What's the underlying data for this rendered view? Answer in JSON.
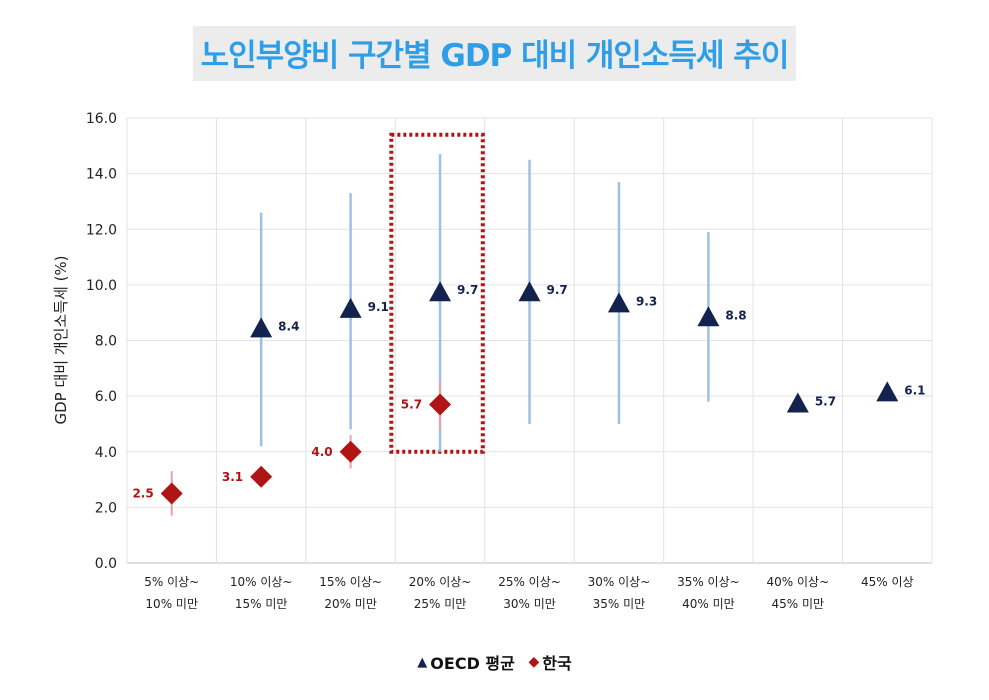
{
  "chart_data": {
    "type": "scatter",
    "title": "노인부양비 구간별 GDP 대비 개인소득세 추이",
    "ylabel": "GDP 대비 개인소득세 (%)",
    "xlabel": "",
    "ylim": [
      0,
      16
    ],
    "yticks": [
      "0.0",
      "2.0",
      "4.0",
      "6.0",
      "8.0",
      "10.0",
      "12.0",
      "14.0",
      "16.0"
    ],
    "grid": true,
    "legend_position": "bottom",
    "categories": [
      [
        "5% 이상~",
        "10% 미만"
      ],
      [
        "10% 이상~",
        "15% 미만"
      ],
      [
        "15% 이상~",
        "20% 미만"
      ],
      [
        "20% 이상~",
        "25% 미만"
      ],
      [
        "25% 이상~",
        "30% 미만"
      ],
      [
        "30% 이상~",
        "35% 미만"
      ],
      [
        "35% 이상~",
        "40% 미만"
      ],
      [
        "40% 이상~",
        "45% 미만"
      ],
      [
        "45% 이상"
      ]
    ],
    "series": [
      {
        "name": "OECD 평균",
        "marker": "triangle",
        "color": "#14224e",
        "range_color": "#9ec1e3",
        "values": [
          null,
          8.4,
          9.1,
          9.7,
          9.7,
          9.3,
          8.8,
          5.7,
          6.1
        ],
        "labels": [
          "",
          "8.4",
          "9.1",
          "9.7",
          "9.7",
          "9.3",
          "8.8",
          "5.7",
          "6.1"
        ],
        "range_min": [
          null,
          4.2,
          4.8,
          4.0,
          5.0,
          5.0,
          5.8,
          null,
          null
        ],
        "range_max": [
          null,
          12.6,
          13.3,
          14.7,
          14.5,
          13.7,
          11.9,
          null,
          null
        ]
      },
      {
        "name": "한국",
        "marker": "diamond",
        "color": "#b01414",
        "range_color": "#f0a0a0",
        "values": [
          2.5,
          3.1,
          4.0,
          5.7,
          null,
          null,
          null,
          null,
          null
        ],
        "labels": [
          "2.5",
          "3.1",
          "4.0",
          "5.7",
          "",
          "",
          "",
          "",
          ""
        ],
        "range_min": [
          1.7,
          null,
          3.4,
          4.8,
          null,
          null,
          null,
          null,
          null
        ],
        "range_max": [
          3.3,
          null,
          4.6,
          6.5,
          null,
          null,
          null,
          null,
          null
        ]
      }
    ],
    "highlight_category_index": 3,
    "highlight_color": "#b01414"
  },
  "legend": {
    "oecd_label": "OECD 평균",
    "korea_label": "한국"
  }
}
